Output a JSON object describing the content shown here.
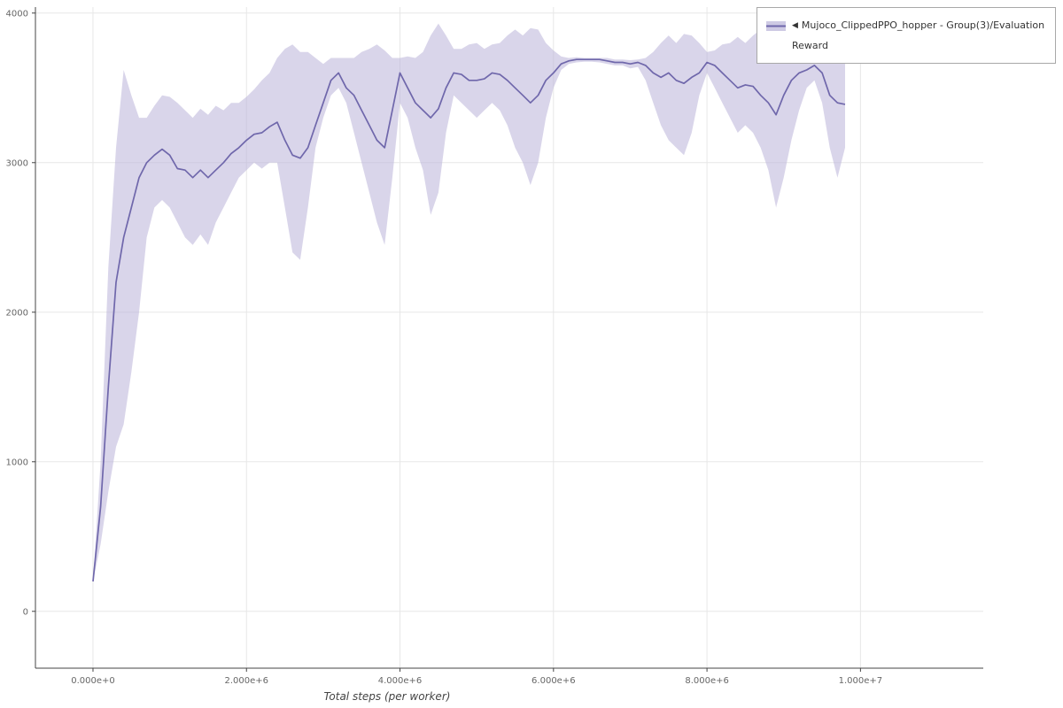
{
  "legend": {
    "collapse_icon": "◀",
    "series_label": "Mujoco_ClippedPPO_hopper - Group(3)/Evaluation Reward",
    "line_color": "#6f67ab",
    "band_color": "#b9b3d9"
  },
  "chart_data": {
    "type": "line",
    "title": "",
    "xlabel": "Total steps (per worker)",
    "ylabel": "",
    "grid": true,
    "legend_position": "top-right",
    "xlim": [
      -750000,
      11600000
    ],
    "ylim": [
      -380,
      4040
    ],
    "x_ticks": {
      "values": [
        0,
        2000000,
        4000000,
        6000000,
        8000000,
        10000000
      ],
      "labels": [
        "0.000e+0",
        "2.000e+6",
        "4.000e+6",
        "6.000e+6",
        "8.000e+6",
        "1.000e+7"
      ]
    },
    "y_ticks": {
      "values": [
        0,
        1000,
        2000,
        3000,
        4000
      ],
      "labels": [
        "0",
        "1000",
        "2000",
        "3000",
        "4000"
      ]
    },
    "colors": {
      "line": "#6f67ab",
      "band": "#b9b3d9",
      "band_opacity": 0.55,
      "grid": "#e7e7e7",
      "axis": "#444444",
      "tick_label": "#666666"
    },
    "series": [
      {
        "name": "Mujoco_ClippedPPO_hopper - Group(3)/Evaluation Reward",
        "x": [
          0,
          100000,
          200000,
          300000,
          400000,
          500000,
          600000,
          700000,
          800000,
          900000,
          1000000,
          1100000,
          1200000,
          1300000,
          1400000,
          1500000,
          1600000,
          1700000,
          1800000,
          1900000,
          2000000,
          2100000,
          2200000,
          2300000,
          2400000,
          2500000,
          2600000,
          2700000,
          2800000,
          2900000,
          3000000,
          3100000,
          3200000,
          3300000,
          3400000,
          3500000,
          3600000,
          3700000,
          3800000,
          3900000,
          4000000,
          4100000,
          4200000,
          4300000,
          4400000,
          4500000,
          4600000,
          4700000,
          4800000,
          4900000,
          5000000,
          5100000,
          5200000,
          5300000,
          5400000,
          5500000,
          5600000,
          5700000,
          5800000,
          5900000,
          6000000,
          6100000,
          6200000,
          6300000,
          6400000,
          6500000,
          6600000,
          6700000,
          6800000,
          6900000,
          7000000,
          7100000,
          7200000,
          7300000,
          7400000,
          7500000,
          7600000,
          7700000,
          7800000,
          7900000,
          8000000,
          8100000,
          8200000,
          8300000,
          8400000,
          8500000,
          8600000,
          8700000,
          8800000,
          8900000,
          9000000,
          9100000,
          9200000,
          9300000,
          9400000,
          9500000,
          9600000,
          9700000,
          9800000
        ],
        "mean": [
          200,
          700,
          1500,
          2200,
          2500,
          2700,
          2900,
          3000,
          3050,
          3090,
          3050,
          2960,
          2950,
          2900,
          2950,
          2900,
          2950,
          3000,
          3060,
          3100,
          3150,
          3190,
          3200,
          3240,
          3270,
          3150,
          3050,
          3030,
          3100,
          3250,
          3400,
          3550,
          3600,
          3500,
          3450,
          3350,
          3250,
          3150,
          3100,
          3350,
          3600,
          3500,
          3400,
          3350,
          3300,
          3360,
          3500,
          3600,
          3590,
          3550,
          3550,
          3560,
          3600,
          3590,
          3550,
          3500,
          3450,
          3400,
          3450,
          3550,
          3600,
          3660,
          3680,
          3690,
          3690,
          3690,
          3690,
          3680,
          3670,
          3670,
          3660,
          3670,
          3650,
          3600,
          3570,
          3600,
          3550,
          3530,
          3570,
          3600,
          3670,
          3650,
          3600,
          3550,
          3500,
          3520,
          3510,
          3450,
          3400,
          3320,
          3450,
          3550,
          3600,
          3620,
          3650,
          3600,
          3450,
          3400,
          3390
        ],
        "lower": [
          200,
          450,
          800,
          1100,
          1250,
          1600,
          2000,
          2500,
          2700,
          2750,
          2700,
          2600,
          2500,
          2450,
          2520,
          2450,
          2600,
          2700,
          2800,
          2900,
          2950,
          3000,
          2960,
          3000,
          3000,
          2700,
          2400,
          2350,
          2700,
          3100,
          3300,
          3450,
          3500,
          3400,
          3200,
          3000,
          2800,
          2600,
          2450,
          2900,
          3400,
          3300,
          3100,
          2950,
          2650,
          2800,
          3200,
          3450,
          3400,
          3350,
          3300,
          3350,
          3400,
          3350,
          3250,
          3100,
          3000,
          2850,
          3000,
          3300,
          3500,
          3620,
          3660,
          3670,
          3675,
          3675,
          3670,
          3660,
          3650,
          3650,
          3630,
          3640,
          3550,
          3400,
          3250,
          3150,
          3100,
          3050,
          3200,
          3450,
          3600,
          3500,
          3400,
          3300,
          3200,
          3250,
          3200,
          3100,
          2950,
          2700,
          2900,
          3150,
          3350,
          3500,
          3550,
          3400,
          3100,
          2900,
          3100
        ],
        "upper": [
          200,
          1000,
          2300,
          3100,
          3620,
          3450,
          3300,
          3300,
          3380,
          3450,
          3440,
          3400,
          3350,
          3300,
          3360,
          3320,
          3380,
          3350,
          3400,
          3400,
          3440,
          3490,
          3550,
          3600,
          3700,
          3760,
          3790,
          3740,
          3740,
          3700,
          3660,
          3700,
          3700,
          3700,
          3700,
          3740,
          3760,
          3790,
          3750,
          3700,
          3700,
          3710,
          3700,
          3740,
          3850,
          3930,
          3850,
          3760,
          3760,
          3790,
          3800,
          3760,
          3790,
          3800,
          3850,
          3890,
          3850,
          3900,
          3890,
          3800,
          3750,
          3710,
          3700,
          3705,
          3700,
          3700,
          3700,
          3700,
          3690,
          3690,
          3685,
          3690,
          3700,
          3740,
          3800,
          3850,
          3800,
          3860,
          3850,
          3800,
          3740,
          3750,
          3790,
          3800,
          3840,
          3800,
          3850,
          3890,
          3850,
          3900,
          3940,
          3890,
          3800,
          3740,
          3700,
          3750,
          3790,
          3790,
          3750
        ]
      }
    ]
  }
}
